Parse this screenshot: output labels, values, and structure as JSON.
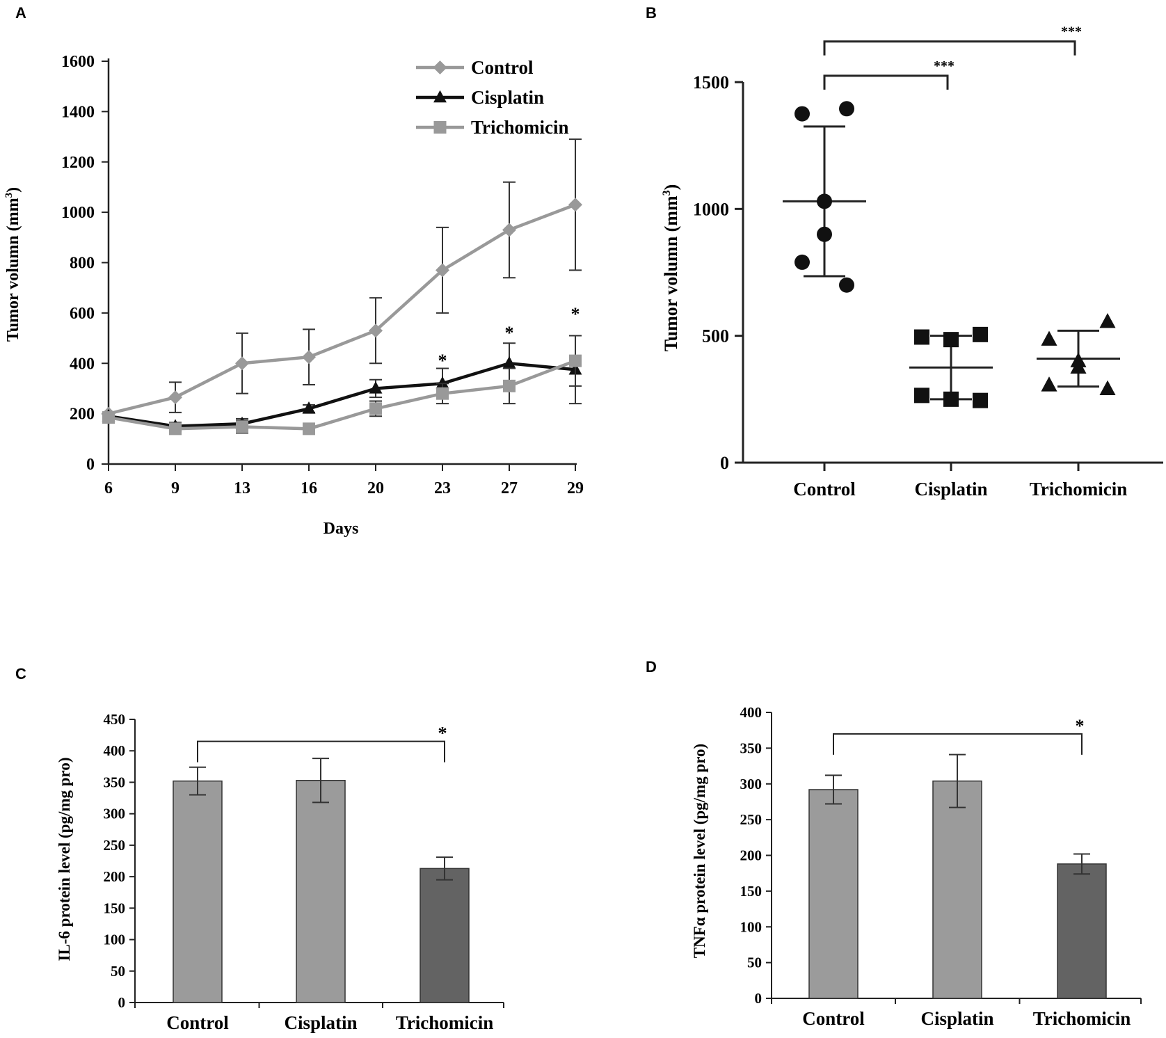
{
  "chart_data": [
    {
      "panel": "A",
      "type": "line",
      "xlabel": "Days",
      "ylabel_main": "Tumor volumn (mm",
      "ylabel_sup": "3",
      "ylabel_end": ")",
      "categories": [
        "6",
        "9",
        "13",
        "16",
        "20",
        "23",
        "27",
        "29"
      ],
      "ylim": [
        0,
        1600
      ],
      "yticks": [
        "0",
        "200",
        "400",
        "600",
        "800",
        "1000",
        "1200",
        "1400",
        "1600"
      ],
      "series": [
        {
          "name": "Control",
          "marker": "diamond",
          "color": "#999999",
          "values": [
            200,
            265,
            400,
            425,
            530,
            770,
            930,
            1030
          ],
          "errors": [
            0,
            60,
            120,
            110,
            130,
            170,
            190,
            260
          ]
        },
        {
          "name": "Cisplatin",
          "marker": "triangle",
          "color": "#111111",
          "values": [
            190,
            150,
            160,
            220,
            300,
            320,
            400,
            375
          ],
          "errors": [
            0,
            15,
            20,
            15,
            35,
            60,
            80,
            135
          ]
        },
        {
          "name": "Trichomicin",
          "marker": "square",
          "color": "#999999",
          "values": [
            185,
            140,
            148,
            140,
            220,
            280,
            310,
            410
          ],
          "errors": [
            0,
            15,
            25,
            10,
            30,
            40,
            70,
            100
          ]
        }
      ],
      "annotations": [
        {
          "category": "23",
          "text": "*",
          "value": 415
        },
        {
          "category": "27",
          "text": "*",
          "value": 525
        },
        {
          "category": "29",
          "text": "*",
          "value": 600
        }
      ]
    },
    {
      "panel": "B",
      "type": "scatter",
      "ylabel_main": "Tumor volumn (mm",
      "ylabel_sup": "3",
      "ylabel_end": ")",
      "categories": [
        "Control",
        "Cisplatin",
        "Trichomicin"
      ],
      "ylim": [
        0,
        1500
      ],
      "yticks": [
        "0",
        "500",
        "1000",
        "1500"
      ],
      "groups": [
        {
          "name": "Control",
          "marker": "circle",
          "points": [
            1375,
            1395,
            1030,
            900,
            790,
            700
          ],
          "mean": 1030,
          "sd": 295
        },
        {
          "name": "Cisplatin",
          "marker": "square",
          "points": [
            495,
            485,
            505,
            265,
            250,
            245
          ],
          "mean": 375,
          "sd": 125
        },
        {
          "name": "Trichomicin",
          "marker": "triangle",
          "points": [
            485,
            400,
            555,
            305,
            375,
            290
          ],
          "mean": 410,
          "sd": 110
        }
      ],
      "brackets": [
        {
          "from": "Control",
          "to": "Trichomicin",
          "text": "***",
          "level": 1660
        },
        {
          "from": "Control",
          "to": "Cisplatin",
          "text": "***",
          "level": 1525
        }
      ]
    },
    {
      "panel": "C",
      "type": "bar",
      "ylabel": "IL-6 protein level (pg/mg pro)",
      "categories": [
        "Control",
        "Cisplatin",
        "Trichomicin"
      ],
      "values": [
        352,
        353,
        213
      ],
      "errors": [
        22,
        35,
        18
      ],
      "colors": [
        "#9b9b9b",
        "#9b9b9b",
        "#636363"
      ],
      "ylim": [
        0,
        450
      ],
      "yticks": [
        "0",
        "50",
        "100",
        "150",
        "200",
        "250",
        "300",
        "350",
        "400",
        "450"
      ],
      "brackets": [
        {
          "from": "Control",
          "to": "Trichomicin",
          "text": "*",
          "level": 415
        }
      ]
    },
    {
      "panel": "D",
      "type": "bar",
      "ylabel": "TNFα protein level (pg/mg pro)",
      "categories": [
        "Control",
        "Cisplatin",
        "Trichomicin"
      ],
      "values": [
        292,
        304,
        188
      ],
      "errors": [
        20,
        37,
        14
      ],
      "colors": [
        "#9b9b9b",
        "#9b9b9b",
        "#636363"
      ],
      "ylim": [
        0,
        400
      ],
      "yticks": [
        "0",
        "50",
        "100",
        "150",
        "200",
        "250",
        "300",
        "350",
        "400"
      ],
      "brackets": [
        {
          "from": "Control",
          "to": "Trichomicin",
          "text": "*",
          "level": 370
        }
      ]
    }
  ]
}
